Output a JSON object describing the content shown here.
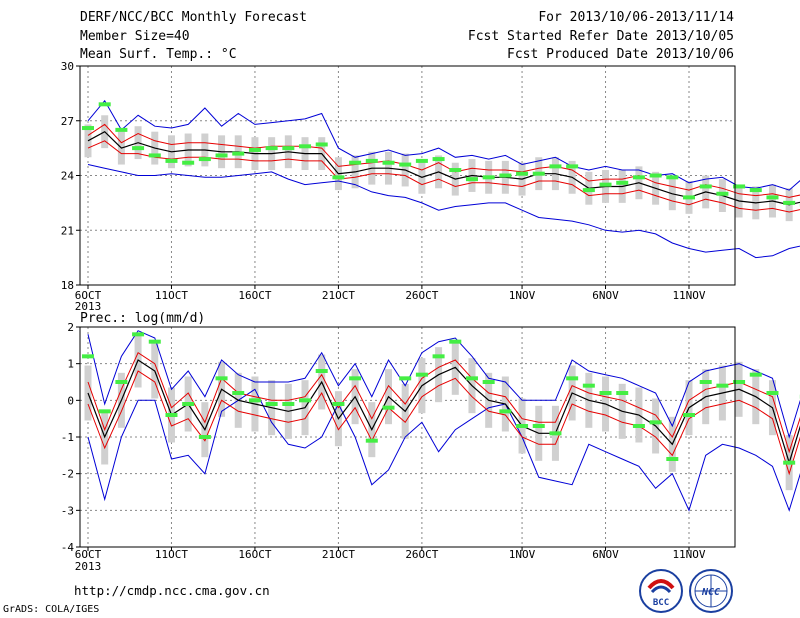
{
  "header": {
    "title": "DERF/NCC/BCC Monthly Forecast",
    "member_size": "Member Size=40",
    "variable": "Mean Surf. Temp.: °C",
    "period": "For 2013/10/06-2013/11/14",
    "started": "Fcst Started Refer Date 2013/10/05",
    "produced": "Fcst Produced Date 2013/10/06"
  },
  "footer": {
    "url": "http://cmdp.ncc.cma.gov.cn",
    "credit": "GrADS: COLA/IGES",
    "logo_bcc": "BCC",
    "logo_ncc": "NCC"
  },
  "colors": {
    "ensemble_mean": "#000000",
    "spread_band": "#e60000",
    "extreme_envelope": "#0000d6",
    "member_box": "#d0d0d0",
    "marker": "#44ee44",
    "grid": "#888888"
  },
  "chart_data": [
    {
      "type": "line",
      "title": "Mean Surf. Temp.: °C",
      "x_tick_labels": [
        "6OCT",
        "11OCT",
        "16OCT",
        "21OCT",
        "26OCT",
        "1NOV",
        "6NOV",
        "11NOV"
      ],
      "x_tick_days": [
        1,
        6,
        11,
        16,
        21,
        27,
        32,
        37
      ],
      "year_label": "2013",
      "ylim": [
        18,
        30
      ],
      "yticks": [
        18,
        21,
        24,
        27,
        30
      ],
      "grid": true,
      "box_half_range": 0.9,
      "series": [
        {
          "name": "max",
          "values": [
            24.6,
            24.4,
            24.2,
            24.0,
            24.0,
            24.1,
            24.0,
            23.9,
            23.9,
            24.0,
            24.1,
            24.2,
            23.8,
            23.5,
            23.6,
            23.7,
            23.5,
            23.1,
            22.9,
            22.8,
            22.5,
            22.1,
            22.3,
            22.4,
            22.5,
            22.5,
            22.1,
            21.7,
            21.6,
            21.5,
            21.3,
            21.0,
            20.9,
            21.0,
            20.8,
            20.3,
            20.0,
            19.8,
            19.9,
            20.0,
            19.5,
            19.6,
            20.0,
            20.2
          ]
        },
        {
          "name": "min",
          "values": [
            27.0,
            28.1,
            26.5,
            27.3,
            26.7,
            26.6,
            26.8,
            27.7,
            26.7,
            27.4,
            26.8,
            26.9,
            27.0,
            27.1,
            27.4,
            25.5,
            25.0,
            25.2,
            25.4,
            25.1,
            25.2,
            25.5,
            25.0,
            25.1,
            24.9,
            25.1,
            24.6,
            24.8,
            25.0,
            24.5,
            24.3,
            24.5,
            24.3,
            24.3,
            24.0,
            24.1,
            23.6,
            23.8,
            23.9,
            23.4,
            23.3,
            23.5,
            23.2,
            24.0
          ]
        },
        {
          "name": "upper",
          "values": [
            26.2,
            26.8,
            25.8,
            26.3,
            25.9,
            25.7,
            25.8,
            25.8,
            25.7,
            25.6,
            25.5,
            25.6,
            25.6,
            25.6,
            25.5,
            24.5,
            24.6,
            24.7,
            24.8,
            24.6,
            24.3,
            24.7,
            24.2,
            24.4,
            24.3,
            24.3,
            24.2,
            24.4,
            24.5,
            24.3,
            23.7,
            23.8,
            23.8,
            24.0,
            23.6,
            23.4,
            23.2,
            23.5,
            23.3,
            23.0,
            22.9,
            23.0,
            22.8,
            23.0
          ]
        },
        {
          "name": "mean",
          "values": [
            25.9,
            26.4,
            25.5,
            25.8,
            25.5,
            25.3,
            25.4,
            25.4,
            25.3,
            25.3,
            25.2,
            25.2,
            25.3,
            25.2,
            25.2,
            24.1,
            24.2,
            24.4,
            24.4,
            24.3,
            23.9,
            24.2,
            23.8,
            24.0,
            23.9,
            23.9,
            23.8,
            24.1,
            24.1,
            23.9,
            23.3,
            23.4,
            23.4,
            23.6,
            23.3,
            23.0,
            22.8,
            23.1,
            22.9,
            22.6,
            22.5,
            22.6,
            22.4,
            22.6
          ]
        },
        {
          "name": "lower",
          "values": [
            25.5,
            25.9,
            25.2,
            25.2,
            25.0,
            24.9,
            25.0,
            25.0,
            24.9,
            24.9,
            24.8,
            24.8,
            24.9,
            24.8,
            24.8,
            23.8,
            23.9,
            24.1,
            24.1,
            24.0,
            23.5,
            23.8,
            23.4,
            23.6,
            23.6,
            23.5,
            23.4,
            23.7,
            23.7,
            23.5,
            22.9,
            23.0,
            23.0,
            23.2,
            22.9,
            22.6,
            22.4,
            22.7,
            22.5,
            22.2,
            22.1,
            22.2,
            22.0,
            22.2
          ]
        },
        {
          "name": "marker",
          "values": [
            26.6,
            27.9,
            26.5,
            25.5,
            25.1,
            24.8,
            24.7,
            24.9,
            25.1,
            25.2,
            25.4,
            25.5,
            25.5,
            25.6,
            25.7,
            23.9,
            24.7,
            24.8,
            24.7,
            24.6,
            24.8,
            24.9,
            24.3,
            23.8,
            23.9,
            24.0,
            24.1,
            24.1,
            24.5,
            24.5,
            23.2,
            23.5,
            23.6,
            23.9,
            24.0,
            23.9,
            22.8,
            23.4,
            23.0,
            23.4,
            23.2,
            22.8,
            22.5,
            22.4
          ]
        },
        {
          "name": "marker_high",
          "values": [
            26.6,
            27.9,
            26.5,
            25.5,
            25.1,
            24.8,
            24.7,
            24.9,
            25.1,
            25.2,
            25.4,
            25.5,
            25.5,
            25.6,
            25.7,
            23.9,
            24.7,
            24.8,
            24.7,
            24.6,
            24.8,
            24.9,
            24.3,
            23.8,
            23.9,
            24.0,
            24.1,
            24.1,
            24.5,
            24.5,
            23.2,
            23.5,
            23.6,
            23.9,
            24.0,
            23.9,
            22.8,
            23.4,
            23.0,
            23.4,
            23.2,
            22.8,
            22.5,
            22.4
          ]
        }
      ]
    },
    {
      "type": "line",
      "title": "Prec.: log(mm/d)",
      "x_tick_labels": [
        "6OCT",
        "11OCT",
        "16OCT",
        "21OCT",
        "26OCT",
        "1NOV",
        "6NOV",
        "11NOV"
      ],
      "x_tick_days": [
        1,
        6,
        11,
        16,
        21,
        27,
        32,
        37
      ],
      "year_label": "2013",
      "ylim": [
        -4,
        2
      ],
      "yticks": [
        -4,
        -3,
        -2,
        -1,
        0,
        1,
        2
      ],
      "grid": true,
      "box_half_range": 0.75,
      "series": [
        {
          "name": "max",
          "values": [
            -1.0,
            -2.7,
            -1.0,
            0.0,
            0.0,
            -1.6,
            -1.5,
            -2.0,
            -0.3,
            0.0,
            0.3,
            -0.6,
            -1.2,
            -1.3,
            -1.0,
            -0.1,
            -1.0,
            -2.3,
            -1.9,
            -1.0,
            -0.6,
            -1.4,
            -0.8,
            -0.5,
            -0.2,
            -0.1,
            -1.0,
            -2.1,
            -2.2,
            -2.3,
            -1.2,
            -1.4,
            -1.6,
            -1.8,
            -2.4,
            -2.0,
            -3.0,
            -1.5,
            -1.2,
            -1.3,
            -1.5,
            -1.8,
            -3.0,
            -1.5
          ]
        },
        {
          "name": "min",
          "values": [
            1.8,
            -0.1,
            1.2,
            1.9,
            1.7,
            0.3,
            0.8,
            0.1,
            1.1,
            0.7,
            0.5,
            0.5,
            0.5,
            0.6,
            1.3,
            0.4,
            1.0,
            0.1,
            1.1,
            0.4,
            1.3,
            1.6,
            1.7,
            1.2,
            0.6,
            0.5,
            0.0,
            0.0,
            0.0,
            1.1,
            0.8,
            0.7,
            0.6,
            0.4,
            0.2,
            -0.7,
            0.5,
            0.8,
            0.9,
            1.0,
            0.8,
            0.6,
            -1.0,
            0.5
          ]
        },
        {
          "name": "upper",
          "values": [
            0.5,
            -0.8,
            0.3,
            1.3,
            1.0,
            -0.2,
            0.2,
            -0.6,
            0.6,
            0.2,
            0.1,
            0.0,
            0.0,
            0.1,
            0.7,
            -0.2,
            0.4,
            -0.5,
            0.4,
            -0.1,
            0.6,
            0.9,
            1.1,
            0.6,
            0.2,
            0.1,
            -0.5,
            -0.6,
            -0.6,
            0.4,
            0.2,
            0.1,
            0.0,
            -0.2,
            -0.4,
            -1.0,
            0.0,
            0.3,
            0.4,
            0.5,
            0.3,
            0.1,
            -1.4,
            0.0
          ]
        },
        {
          "name": "mean",
          "values": [
            0.2,
            -1.0,
            0.0,
            1.1,
            0.8,
            -0.4,
            -0.1,
            -0.8,
            0.3,
            0.0,
            -0.1,
            -0.2,
            -0.3,
            -0.2,
            0.5,
            -0.5,
            0.1,
            -0.8,
            0.1,
            -0.3,
            0.4,
            0.7,
            0.9,
            0.4,
            0.0,
            -0.1,
            -0.7,
            -0.9,
            -0.9,
            0.2,
            0.0,
            -0.1,
            -0.3,
            -0.4,
            -0.7,
            -1.2,
            -0.2,
            0.1,
            0.2,
            0.3,
            0.1,
            -0.2,
            -1.7,
            -0.2
          ]
        },
        {
          "name": "lower",
          "values": [
            -0.1,
            -1.3,
            -0.3,
            0.8,
            0.5,
            -0.7,
            -0.5,
            -1.1,
            0.0,
            -0.3,
            -0.4,
            -0.5,
            -0.6,
            -0.5,
            0.2,
            -0.8,
            -0.2,
            -1.1,
            -0.2,
            -0.6,
            0.1,
            0.4,
            0.6,
            0.1,
            -0.3,
            -0.4,
            -1.0,
            -1.2,
            -1.2,
            -0.1,
            -0.3,
            -0.4,
            -0.6,
            -0.7,
            -1.0,
            -1.5,
            -0.5,
            -0.2,
            -0.1,
            0.0,
            -0.2,
            -0.5,
            -2.0,
            -0.5
          ]
        },
        {
          "name": "marker",
          "values": [
            1.2,
            -0.3,
            0.5,
            1.8,
            1.6,
            -0.4,
            -0.1,
            -1.0,
            0.6,
            0.2,
            0.0,
            -0.1,
            -0.1,
            0.0,
            0.8,
            -0.1,
            0.6,
            -1.1,
            -0.2,
            0.6,
            0.7,
            1.2,
            1.6,
            0.6,
            0.5,
            -0.3,
            -0.7,
            -0.7,
            -0.9,
            0.6,
            0.4,
            0.2,
            0.2,
            -0.7,
            -0.6,
            -1.6,
            -0.4,
            0.5,
            0.4,
            0.5,
            0.7,
            0.2,
            -1.7,
            0.1
          ]
        },
        {
          "name": "marker_high",
          "values": [
            1.2,
            -0.3,
            0.5,
            1.8,
            1.6,
            -0.4,
            -0.1,
            -1.0,
            0.6,
            0.2,
            0.0,
            -0.1,
            -0.1,
            0.0,
            0.8,
            -0.1,
            0.6,
            -1.1,
            -0.2,
            0.6,
            0.7,
            1.2,
            1.6,
            0.6,
            0.5,
            -0.3,
            -0.7,
            -0.7,
            -0.9,
            0.6,
            0.4,
            0.2,
            0.2,
            -0.7,
            -0.6,
            -1.6,
            -0.4,
            0.5,
            0.4,
            0.5,
            0.7,
            0.2,
            -1.7,
            0.1
          ]
        }
      ]
    }
  ]
}
